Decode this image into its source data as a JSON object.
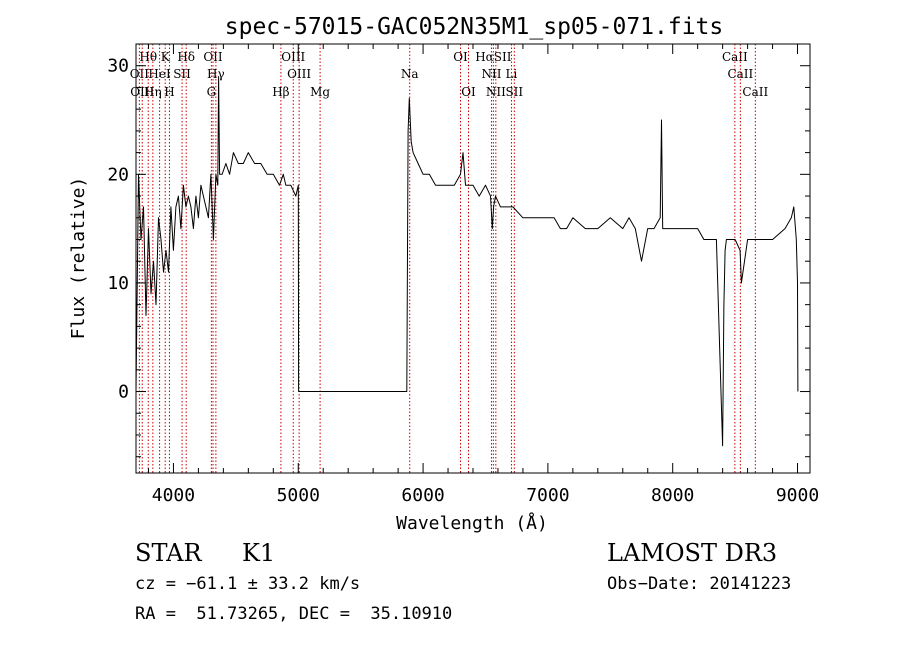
{
  "chart_data": {
    "type": "line",
    "title": "spec-57015-GAC052N35M1_sp05-071.fits",
    "xlabel": "Wavelength (Å)",
    "ylabel": "Flux (relative)",
    "xlim": [
      3700,
      9100
    ],
    "ylim": [
      -7.5,
      32
    ],
    "xticks": [
      4000,
      5000,
      6000,
      7000,
      8000,
      9000
    ],
    "yticks": [
      0,
      10,
      20,
      30
    ],
    "minor_x_step": 200,
    "minor_y_step": 2,
    "series": [
      {
        "name": "flux",
        "x": [
          3700,
          3720,
          3740,
          3760,
          3780,
          3800,
          3820,
          3840,
          3860,
          3880,
          3900,
          3920,
          3940,
          3960,
          3980,
          4000,
          4020,
          4040,
          4060,
          4080,
          4100,
          4120,
          4140,
          4160,
          4180,
          4200,
          4220,
          4240,
          4260,
          4280,
          4300,
          4320,
          4340,
          4355,
          4362,
          4370,
          4390,
          4420,
          4450,
          4480,
          4520,
          4560,
          4600,
          4650,
          4700,
          4750,
          4800,
          4850,
          4880,
          4900,
          4940,
          4980,
          5000,
          5003,
          5010,
          5200,
          5500,
          5800,
          5870,
          5880,
          5890,
          5905,
          5920,
          5960,
          6000,
          6050,
          6100,
          6150,
          6200,
          6250,
          6300,
          6320,
          6340,
          6400,
          6450,
          6500,
          6540,
          6555,
          6565,
          6580,
          6620,
          6680,
          6720,
          6800,
          6900,
          7000,
          7050,
          7100,
          7150,
          7200,
          7300,
          7400,
          7500,
          7600,
          7650,
          7700,
          7750,
          7800,
          7850,
          7900,
          7910,
          7920,
          7950,
          8000,
          8050,
          8100,
          8150,
          8200,
          8250,
          8300,
          8350,
          8400,
          8410,
          8420,
          8430,
          8500,
          8540,
          8550,
          8600,
          8650,
          8700,
          8800,
          8900,
          8950,
          8970,
          8990,
          9000,
          9003
        ],
        "y": [
          0,
          20,
          14,
          17,
          7,
          15,
          9,
          12,
          8,
          16,
          14,
          11,
          13,
          11,
          17,
          13,
          17,
          18,
          15,
          19,
          17,
          18,
          17,
          15,
          18,
          16,
          19,
          18,
          17,
          16,
          20,
          14,
          20,
          19,
          29,
          20,
          20,
          21,
          20,
          22,
          21,
          21,
          22,
          21,
          21,
          20,
          20,
          19,
          20,
          19,
          19,
          18,
          19,
          0,
          0,
          0,
          0,
          0,
          0,
          24,
          27,
          23,
          22,
          21,
          20,
          20,
          19,
          19,
          19,
          19,
          20,
          22,
          19,
          19,
          18,
          19,
          18,
          15,
          17,
          18,
          17,
          17,
          17,
          16,
          16,
          16,
          16,
          15,
          15,
          16,
          15,
          15,
          16,
          15,
          16,
          15,
          12,
          15,
          15,
          16,
          25,
          15,
          15,
          15,
          15,
          15,
          15,
          15,
          14,
          14,
          14,
          -5,
          8,
          13,
          14,
          14,
          13,
          10,
          14,
          14,
          14,
          14,
          15,
          16,
          17,
          14,
          10,
          0
        ]
      }
    ],
    "line_markers": [
      {
        "label": "Hθ",
        "x": 3798,
        "row": 0
      },
      {
        "label": "K",
        "x": 3934,
        "row": 0
      },
      {
        "label": "Hδ",
        "x": 4102,
        "row": 0
      },
      {
        "label": "OII",
        "x": 4317,
        "row": 0
      },
      {
        "label": "OIII",
        "x": 4960,
        "row": 0
      },
      {
        "label": "OI",
        "x": 6300,
        "row": 0
      },
      {
        "label": "HαSII",
        "x": 6563,
        "row": 0
      },
      {
        "label": "CaII",
        "x": 8498,
        "row": 0
      },
      {
        "label": "OII",
        "x": 3727,
        "row": 1
      },
      {
        "label": "HeI",
        "x": 3889,
        "row": 1
      },
      {
        "label": "SII",
        "x": 4069,
        "row": 1
      },
      {
        "label": "Hγ",
        "x": 4340,
        "row": 1
      },
      {
        "label": "OIII",
        "x": 5007,
        "row": 1
      },
      {
        "label": "Na",
        "x": 5893,
        "row": 1
      },
      {
        "label": "NII",
        "x": 6548,
        "row": 1
      },
      {
        "label": "Li",
        "x": 6708,
        "row": 1
      },
      {
        "label": "CaII",
        "x": 8542,
        "row": 1
      },
      {
        "label": "OIII",
        "x": 3750,
        "row": 2
      },
      {
        "label": "Hη",
        "x": 3835,
        "row": 2
      },
      {
        "label": "H",
        "x": 3968,
        "row": 2
      },
      {
        "label": "G",
        "x": 4304,
        "row": 2
      },
      {
        "label": "Hβ",
        "x": 4861,
        "row": 2
      },
      {
        "label": "Mg",
        "x": 5175,
        "row": 2
      },
      {
        "label": "OI",
        "x": 6364,
        "row": 2
      },
      {
        "label": "NII",
        "x": 6583,
        "row": 2
      },
      {
        "label": "SII",
        "x": 6731,
        "row": 2
      },
      {
        "label": "CaII",
        "x": 8662,
        "row": 2
      }
    ]
  },
  "info": {
    "object_class": "STAR",
    "subclass": "K1",
    "survey": "LAMOST DR3",
    "cz": "cz = −61.1 ± 33.2 km/s",
    "obs_date": "Obs−Date: 20141223",
    "coords": "RA =  51.73265, DEC =  35.10910"
  },
  "colors": {
    "line": "#000000",
    "marker": "#cc0000",
    "background": "#ffffff"
  }
}
